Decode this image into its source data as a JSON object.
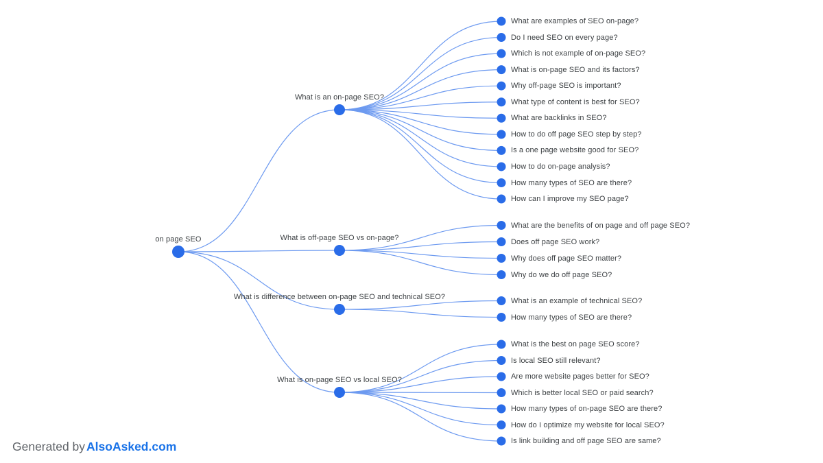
{
  "footer": {
    "prefix": "Generated by",
    "brand": "AlsoAsked.com"
  },
  "colors": {
    "node": "#2a6ce8",
    "link": "#6d9af0",
    "label": "#3c4043",
    "footer_text": "#5f6368",
    "brand": "#1a73e8"
  },
  "tree": {
    "root": {
      "label": "on page SEO"
    },
    "branches": [
      {
        "label": "What is an on-page SEO?",
        "children": [
          "What are examples of SEO on-page?",
          "Do I need SEO on every page?",
          "Which is not example of on-page SEO?",
          "What is on-page SEO and its factors?",
          "Why off-page SEO is important?",
          "What type of content is best for SEO?",
          "What are backlinks in SEO?",
          "How to do off page SEO step by step?",
          "Is a one page website good for SEO?",
          "How to do on-page analysis?",
          "How many types of SEO are there?",
          "How can I improve my SEO page?"
        ]
      },
      {
        "label": "What is off-page SEO vs on-page?",
        "children": [
          "What are the benefits of on page and off page SEO?",
          "Does off page SEO work?",
          "Why does off page SEO matter?",
          "Why do we do off page SEO?"
        ]
      },
      {
        "label": "What is difference between on-page SEO and technical SEO?",
        "children": [
          "What is an example of technical SEO?",
          "How many types of SEO are there?"
        ]
      },
      {
        "label": "What is on-page SEO vs local SEO?",
        "children": [
          "What is the best on page SEO score?",
          "Is local SEO still relevant?",
          "Are more website pages better for SEO?",
          "Which is better local SEO or paid search?",
          "How many types of on-page SEO are there?",
          "How do I optimize my website for local SEO?",
          "Is link building and off page SEO are same?"
        ]
      }
    ]
  }
}
